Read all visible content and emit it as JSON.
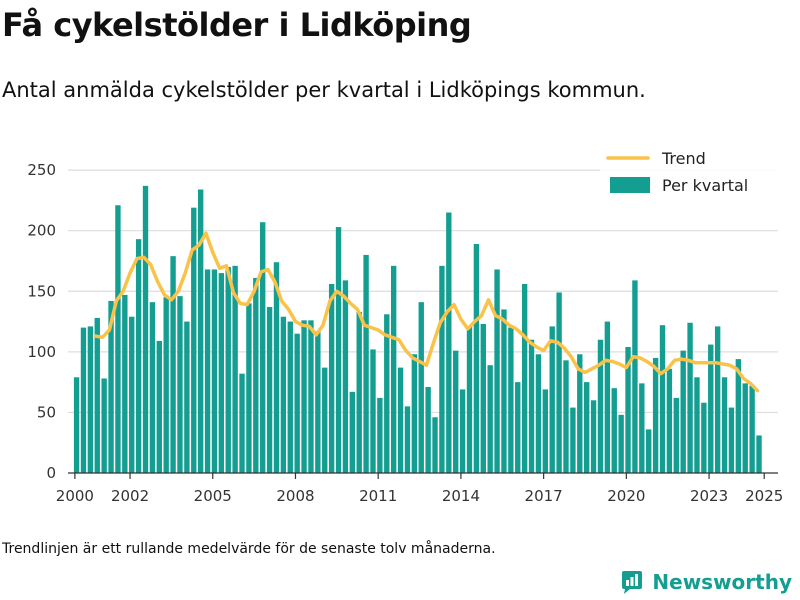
{
  "title": "Få cykelstölder i Lidköping",
  "subtitle": "Antal anmälda cykelstölder per kvartal i Lidköpings kommun.",
  "footnote": "Trendlinjen är ett rullande medelvärde för de senaste tolv månaderna.",
  "brand": {
    "name": "Newsworthy",
    "icon": "newsworthy-logo-icon"
  },
  "colors": {
    "bar": "#149e91",
    "trend": "#fac249",
    "grid": "#dddddd",
    "axis": "#333333"
  },
  "chart_data": {
    "type": "bar",
    "title": "",
    "xlabel": "",
    "ylabel": "",
    "ylim": [
      0,
      260
    ],
    "yticks": [
      0,
      50,
      100,
      150,
      200,
      250
    ],
    "xlim": [
      1999.75,
      2025.5
    ],
    "xticks": [
      2000,
      2002,
      2005,
      2008,
      2011,
      2014,
      2017,
      2020,
      2023,
      2025
    ],
    "grid": true,
    "legend": {
      "position": "top-right",
      "items": [
        "Trend",
        "Per kvartal"
      ]
    },
    "series": [
      {
        "name": "Per kvartal",
        "type": "bar",
        "start": 2000,
        "step": 0.25,
        "values": [
          79,
          120,
          121,
          128,
          78,
          142,
          221,
          147,
          129,
          193,
          237,
          141,
          109,
          145,
          179,
          146,
          125,
          219,
          234,
          168,
          168,
          165,
          170,
          171,
          82,
          140,
          161,
          207,
          137,
          174,
          129,
          125,
          115,
          126,
          126,
          117,
          87,
          156,
          203,
          159,
          67,
          133,
          180,
          102,
          62,
          131,
          171,
          87,
          55,
          98,
          141,
          71,
          46,
          171,
          215,
          101,
          69,
          121,
          189,
          123,
          89,
          168,
          135,
          120,
          75,
          156,
          110,
          98,
          69,
          121,
          149,
          93,
          54,
          98,
          75,
          60,
          110,
          125,
          70,
          48,
          104,
          159,
          74,
          36,
          95,
          122,
          86,
          62,
          101,
          124,
          79,
          58,
          106,
          121,
          79,
          54,
          94,
          74,
          72,
          31
        ]
      },
      {
        "name": "Trend",
        "type": "line",
        "points": [
          [
            2000.75,
            113
          ],
          [
            2001,
            112
          ],
          [
            2001.25,
            118
          ],
          [
            2001.5,
            142
          ],
          [
            2001.75,
            150
          ],
          [
            2002,
            165
          ],
          [
            2002.25,
            177
          ],
          [
            2002.5,
            178
          ],
          [
            2002.75,
            172
          ],
          [
            2003,
            158
          ],
          [
            2003.25,
            147
          ],
          [
            2003.5,
            143
          ],
          [
            2003.75,
            150
          ],
          [
            2004,
            165
          ],
          [
            2004.25,
            184
          ],
          [
            2004.5,
            188
          ],
          [
            2004.75,
            198
          ],
          [
            2005,
            182
          ],
          [
            2005.25,
            169
          ],
          [
            2005.5,
            171
          ],
          [
            2005.75,
            149
          ],
          [
            2006,
            140
          ],
          [
            2006.25,
            139
          ],
          [
            2006.5,
            150
          ],
          [
            2006.75,
            166
          ],
          [
            2007,
            168
          ],
          [
            2007.25,
            158
          ],
          [
            2007.5,
            142
          ],
          [
            2007.75,
            135
          ],
          [
            2008,
            125
          ],
          [
            2008.25,
            122
          ],
          [
            2008.5,
            121
          ],
          [
            2008.75,
            114
          ],
          [
            2009,
            122
          ],
          [
            2009.25,
            142
          ],
          [
            2009.5,
            150
          ],
          [
            2009.75,
            146
          ],
          [
            2010,
            140
          ],
          [
            2010.25,
            135
          ],
          [
            2010.5,
            122
          ],
          [
            2010.75,
            120
          ],
          [
            2011,
            118
          ],
          [
            2011.25,
            114
          ],
          [
            2011.5,
            112
          ],
          [
            2011.75,
            110
          ],
          [
            2012,
            101
          ],
          [
            2012.25,
            95
          ],
          [
            2012.5,
            92
          ],
          [
            2012.75,
            89
          ],
          [
            2013,
            107
          ],
          [
            2013.25,
            124
          ],
          [
            2013.5,
            133
          ],
          [
            2013.75,
            139
          ],
          [
            2014,
            127
          ],
          [
            2014.25,
            119
          ],
          [
            2014.5,
            125
          ],
          [
            2014.75,
            130
          ],
          [
            2015,
            143
          ],
          [
            2015.25,
            130
          ],
          [
            2015.5,
            127
          ],
          [
            2015.75,
            122
          ],
          [
            2016,
            119
          ],
          [
            2016.25,
            114
          ],
          [
            2016.5,
            108
          ],
          [
            2016.75,
            104
          ],
          [
            2017,
            101
          ],
          [
            2017.25,
            109
          ],
          [
            2017.5,
            108
          ],
          [
            2017.75,
            103
          ],
          [
            2018,
            96
          ],
          [
            2018.25,
            86
          ],
          [
            2018.5,
            83
          ],
          [
            2018.75,
            86
          ],
          [
            2019,
            89
          ],
          [
            2019.25,
            93
          ],
          [
            2019.5,
            92
          ],
          [
            2019.75,
            90
          ],
          [
            2020,
            87
          ],
          [
            2020.25,
            96
          ],
          [
            2020.5,
            95
          ],
          [
            2020.75,
            92
          ],
          [
            2021,
            88
          ],
          [
            2021.25,
            82
          ],
          [
            2021.5,
            86
          ],
          [
            2021.75,
            93
          ],
          [
            2022,
            94
          ],
          [
            2022.25,
            93
          ],
          [
            2022.5,
            91
          ],
          [
            2022.75,
            91
          ],
          [
            2023,
            91
          ],
          [
            2023.25,
            91
          ],
          [
            2023.5,
            90
          ],
          [
            2023.75,
            89
          ],
          [
            2024,
            86
          ],
          [
            2024.25,
            78
          ],
          [
            2024.5,
            74
          ],
          [
            2024.75,
            68
          ]
        ]
      }
    ]
  }
}
